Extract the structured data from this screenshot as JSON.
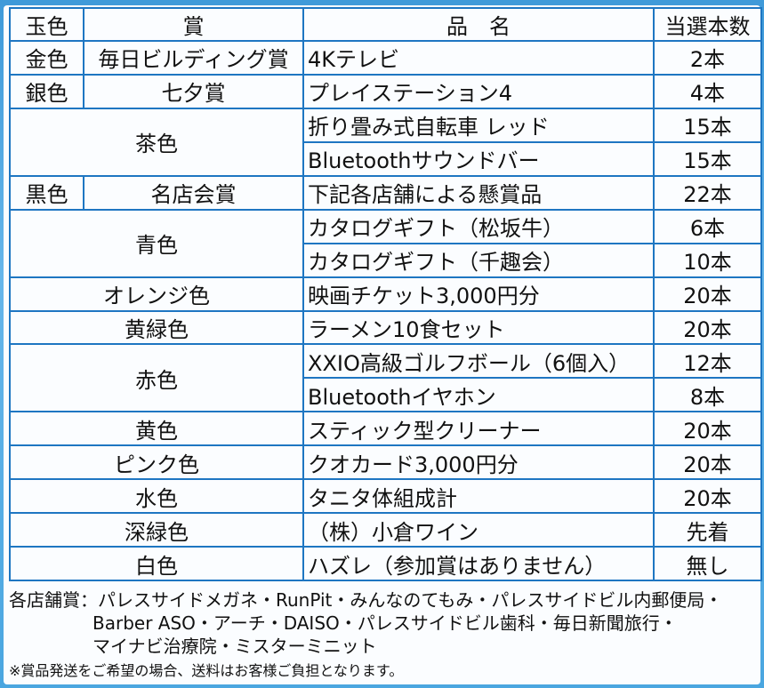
{
  "headers": {
    "color": "玉色",
    "award": "賞",
    "item": "品　名",
    "count": "当選本数"
  },
  "rows": {
    "gold": {
      "color": "金色",
      "award": "毎日ビルディング賞",
      "item": "4Kテレビ",
      "count": "2本"
    },
    "silver": {
      "color": "銀色",
      "award": "七夕賞",
      "item": "プレイステーション4",
      "count": "4本"
    },
    "brown": {
      "color": "茶色",
      "items": [
        {
          "item": "折り畳み式自転車 レッド",
          "count": "15本"
        },
        {
          "item": "Bluetoothサウンドバー",
          "count": "15本"
        }
      ]
    },
    "black": {
      "color": "黒色",
      "award": "名店会賞",
      "item": "下記各店舗による懸賞品",
      "count": "22本"
    },
    "blue": {
      "color": "青色",
      "items": [
        {
          "item": "カタログギフト（松坂牛）",
          "count": "6本"
        },
        {
          "item": "カタログギフト（千趣会）",
          "count": "10本"
        }
      ]
    },
    "orange": {
      "color": "オレンジ色",
      "item": "映画チケット3,000円分",
      "count": "20本"
    },
    "yellowgreen": {
      "color": "黄緑色",
      "item": "ラーメン10食セット",
      "count": "20本"
    },
    "red": {
      "color": "赤色",
      "items": [
        {
          "item": "XXIO高級ゴルフボール（6個入）",
          "count": "12本"
        },
        {
          "item": "Bluetoothイヤホン",
          "count": "8本"
        }
      ]
    },
    "yellow": {
      "color": "黄色",
      "item": "スティック型クリーナー",
      "count": "20本"
    },
    "pink": {
      "color": "ピンク色",
      "item": "クオカード3,000円分",
      "count": "20本"
    },
    "water": {
      "color": "水色",
      "item": "タニタ体組成計",
      "count": "20本"
    },
    "darkgreen": {
      "color": "深緑色",
      "item": "（株）小倉ワイン",
      "count": "先着"
    },
    "white": {
      "color": "白色",
      "item": "ハズレ（参加賞はありません）",
      "count": "無し"
    }
  },
  "notes": {
    "shops_line1": "各店舗賞：パレスサイドメガネ・RunPit・みんなのてもみ・パレスサイドビル内郵便局・",
    "shops_line2": "Barber ASO・アーチ・DAISO・パレスサイドビル歯科・毎日新聞旅行・",
    "shops_line3": "マイナビ治療院・ミスターミニット",
    "shipping": "※賞品発送をご希望の場合、送料はお客様ご負担となります。"
  }
}
